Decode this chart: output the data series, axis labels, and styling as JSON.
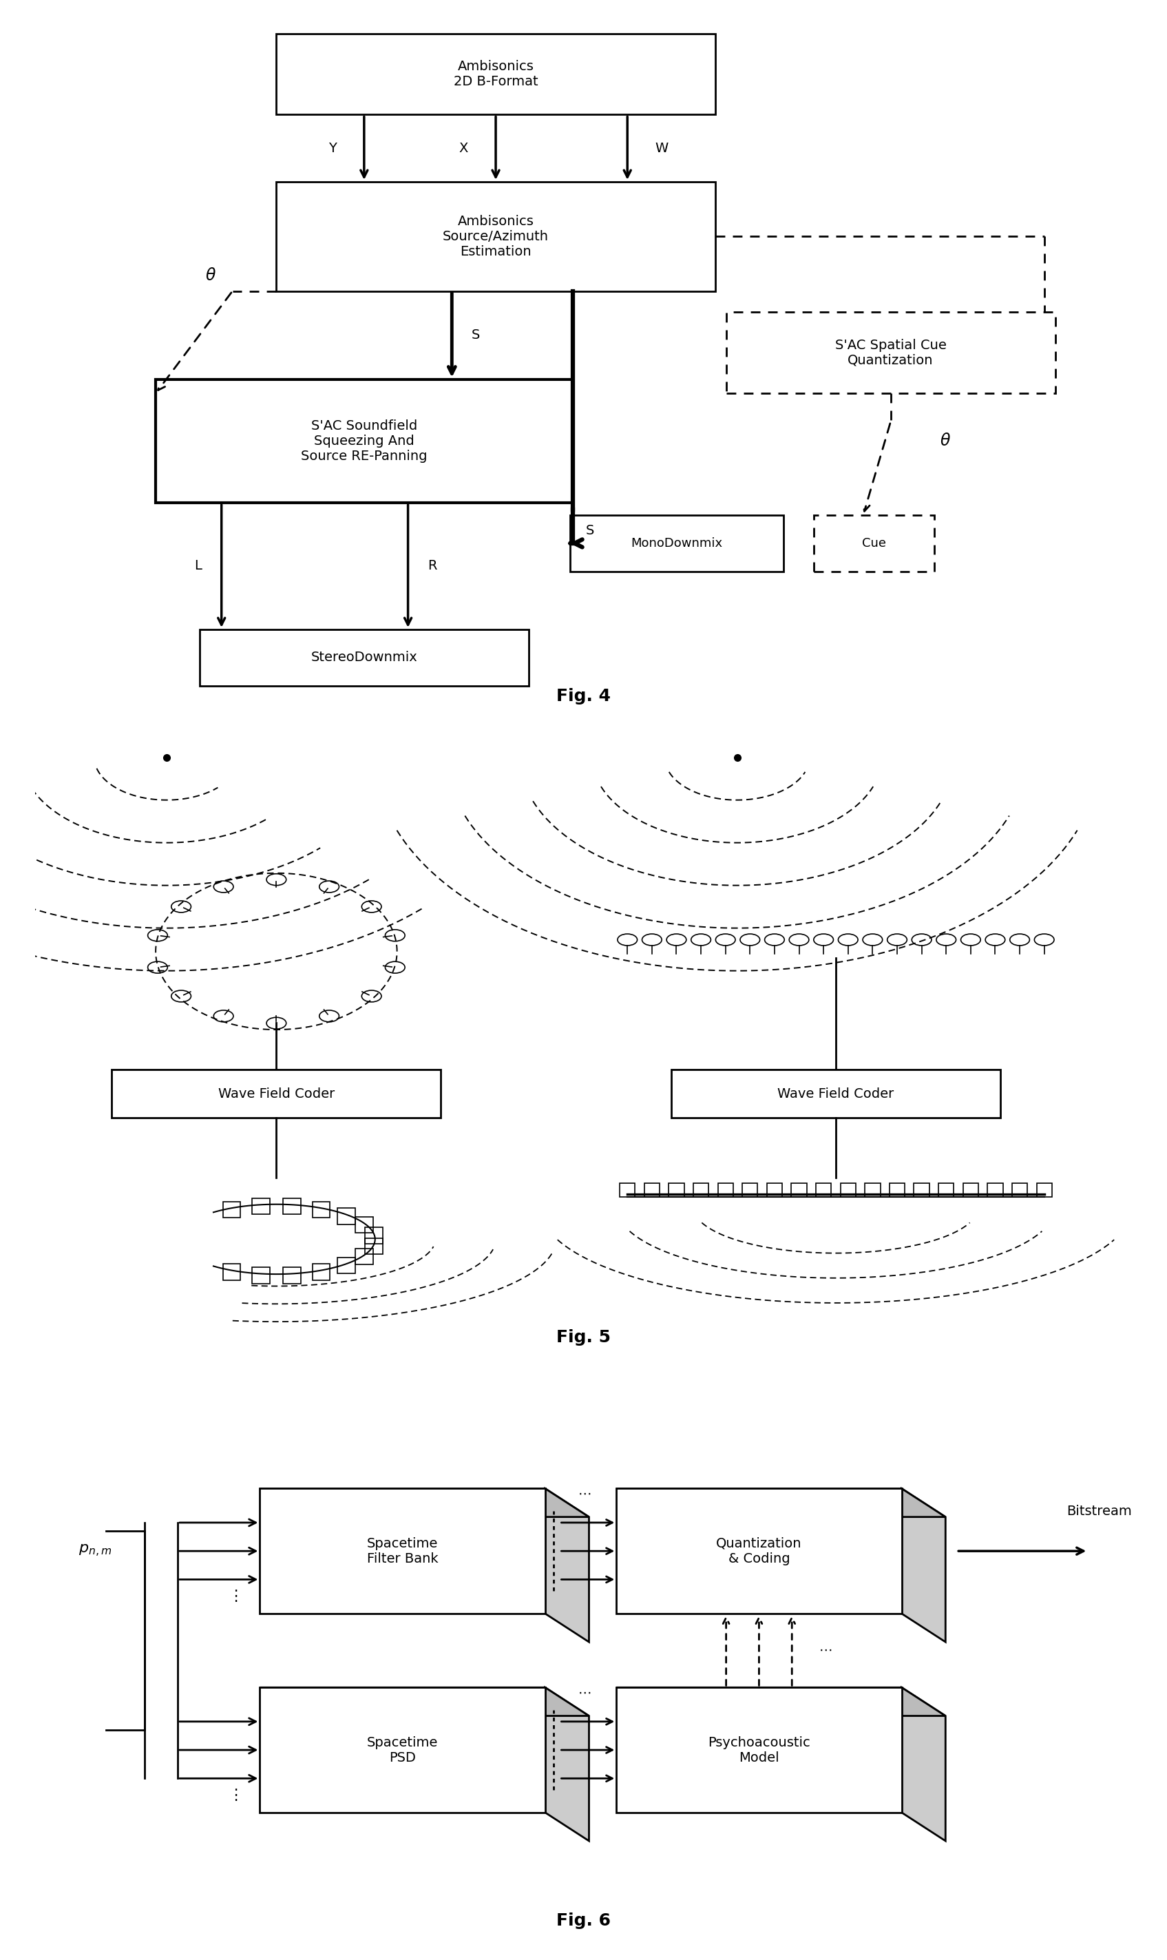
{
  "background": "#ffffff",
  "fig4_title": "Fig. 4",
  "fig5_title": "Fig. 5",
  "fig6_title": "Fig. 6",
  "fontsize": 14
}
